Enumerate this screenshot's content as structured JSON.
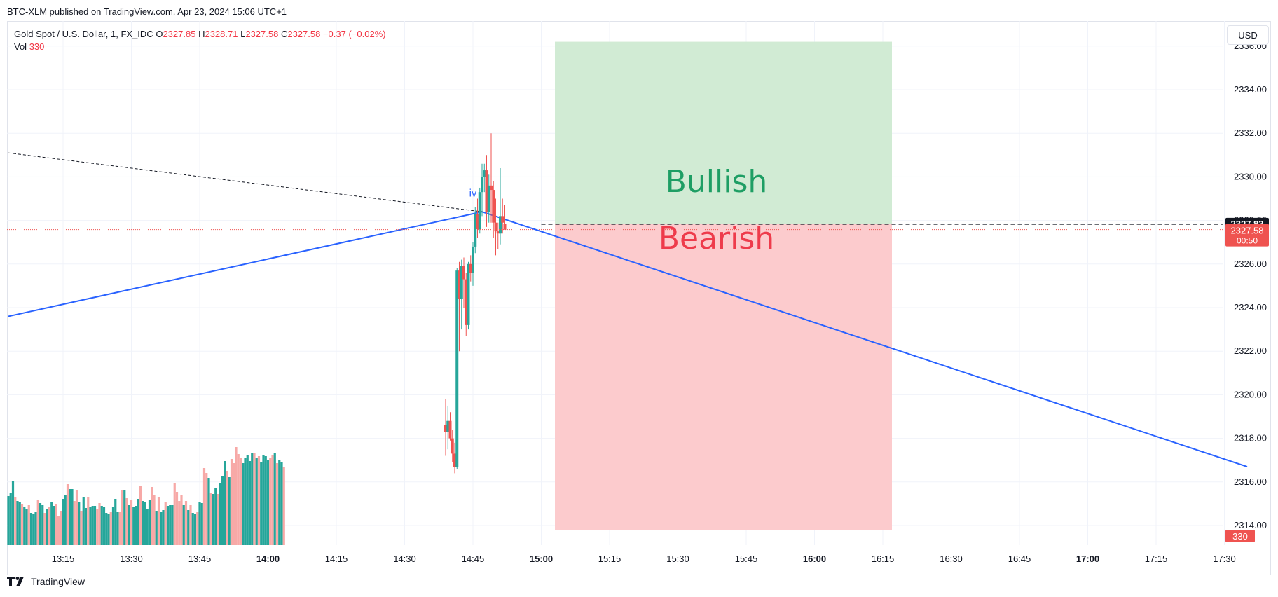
{
  "header": {
    "published": "BTC-XLM published on TradingView.com, Apr 23, 2024 15:06 UTC+1"
  },
  "legend": {
    "symbol": "Gold Spot / U.S. Dollar, 1, FX_IDC",
    "open_label": "O",
    "open": "2327.85",
    "high_label": "H",
    "high": "2328.71",
    "low_label": "L",
    "low": "2327.58",
    "close_label": "C",
    "close": "2327.58",
    "change": "−0.37 (−0.02%)",
    "vol_label": "Vol",
    "vol": "330"
  },
  "currency_button": "USD",
  "footer": {
    "brand": "TradingView"
  },
  "colors": {
    "up": "#26a69a",
    "down": "#ef5350",
    "vol_up": "#26a69a",
    "vol_down": "#f7a9a7",
    "trendline": "#2962ff",
    "bull_zone": "#d1ebd4",
    "bear_zone": "#fccbcd",
    "bull_text": "#1e9e64",
    "bear_text": "#ee3b4b"
  },
  "chart_data": {
    "type": "candlestick",
    "symbol": "Gold Spot / U.S. Dollar",
    "interval": "1",
    "y_axis_ticks": [
      "2314.00",
      "2316.00",
      "2318.00",
      "2320.00",
      "2322.00",
      "2324.00",
      "2326.00",
      "2328.00",
      "2330.00",
      "2332.00",
      "2334.00",
      "2336.00"
    ],
    "x_axis_ticks": [
      {
        "label": "13:15",
        "bold": false
      },
      {
        "label": "13:30",
        "bold": false
      },
      {
        "label": "13:45",
        "bold": false
      },
      {
        "label": "14:00",
        "bold": true
      },
      {
        "label": "14:15",
        "bold": false
      },
      {
        "label": "14:30",
        "bold": false
      },
      {
        "label": "14:45",
        "bold": false
      },
      {
        "label": "15:00",
        "bold": true
      },
      {
        "label": "15:15",
        "bold": false
      },
      {
        "label": "15:30",
        "bold": false
      },
      {
        "label": "15:45",
        "bold": false
      },
      {
        "label": "16:00",
        "bold": true
      },
      {
        "label": "16:15",
        "bold": false
      },
      {
        "label": "16:30",
        "bold": false
      },
      {
        "label": "16:45",
        "bold": false
      },
      {
        "label": "17:00",
        "bold": true
      },
      {
        "label": "17:15",
        "bold": false
      },
      {
        "label": "17:30",
        "bold": false
      }
    ],
    "ylim": [
      2313.5,
      2336.2
    ],
    "time_range_min": [
      "13:03",
      "17:35"
    ],
    "price_labels": [
      {
        "value": 2327.83,
        "text": "2327.83",
        "style": "black"
      },
      {
        "value": 2327.58,
        "text": "2327.58",
        "sub": "00:50",
        "style": "red"
      }
    ],
    "volume_label": "330",
    "annotations": {
      "wave_label": "iv",
      "bullish_text": "Bullish",
      "bearish_text": "Bearish"
    },
    "zones": {
      "start_time": "15:03",
      "end_time": "16:17",
      "entry": 2327.83,
      "bull_top": 2336.2,
      "bear_bottom": 2313.8
    },
    "trendlines": [
      {
        "style": "solid",
        "points": [
          [
            "13:03",
            2323.6
          ],
          [
            "14:47",
            2328.4
          ],
          [
            "17:35",
            2316.7
          ]
        ]
      },
      {
        "style": "dashed",
        "points": [
          [
            "13:03",
            2331.1
          ],
          [
            "14:47",
            2328.4
          ]
        ]
      }
    ],
    "candles": {
      "start_time": "14:39",
      "ohlc": [
        [
          2318.6,
          2319.8,
          2317.2,
          2318.3
        ],
        [
          2318.3,
          2319.5,
          2317.5,
          2318.8
        ],
        [
          2318.8,
          2319.2,
          2317.9,
          2318.0
        ],
        [
          2318.0,
          2318.4,
          2316.9,
          2317.3
        ],
        [
          2317.3,
          2317.8,
          2316.4,
          2316.7
        ],
        [
          2316.7,
          2325.8,
          2316.6,
          2325.7
        ],
        [
          2325.7,
          2326.1,
          2322.0,
          2324.4
        ],
        [
          2324.4,
          2326.2,
          2323.0,
          2325.9
        ],
        [
          2325.9,
          2326.3,
          2324.0,
          2325.3
        ],
        [
          2325.3,
          2325.6,
          2322.7,
          2323.2
        ],
        [
          2323.2,
          2326.1,
          2323.0,
          2326.0
        ],
        [
          2326.0,
          2326.4,
          2325.2,
          2325.6
        ],
        [
          2325.6,
          2327.0,
          2325.0,
          2326.8
        ],
        [
          2326.8,
          2328.6,
          2326.5,
          2328.3
        ],
        [
          2328.3,
          2329.0,
          2327.2,
          2327.6
        ],
        [
          2327.6,
          2329.5,
          2327.4,
          2329.3
        ],
        [
          2329.3,
          2330.6,
          2328.2,
          2330.0
        ],
        [
          2330.0,
          2330.6,
          2329.3,
          2330.3
        ],
        [
          2330.3,
          2331.0,
          2327.7,
          2328.4
        ],
        [
          2328.4,
          2330.1,
          2327.9,
          2329.6
        ],
        [
          2329.6,
          2332.0,
          2327.9,
          2329.4
        ],
        [
          2329.4,
          2329.8,
          2327.2,
          2327.9
        ],
        [
          2327.9,
          2329.0,
          2326.4,
          2327.5
        ],
        [
          2327.5,
          2327.9,
          2326.7,
          2327.4
        ],
        [
          2327.4,
          2330.4,
          2326.9,
          2328.2
        ],
        [
          2328.2,
          2329.0,
          2327.4,
          2327.9
        ],
        [
          2327.85,
          2328.71,
          2327.58,
          2327.58
        ]
      ]
    },
    "volume": {
      "start_time": "13:03",
      "up": [
        1,
        1,
        1,
        0,
        1,
        1,
        0,
        1,
        1,
        0,
        1,
        1,
        1,
        0,
        1,
        1,
        0,
        1,
        0,
        1,
        1,
        0,
        0,
        0,
        1,
        1,
        0,
        1,
        1,
        0,
        0,
        1,
        0,
        1,
        1,
        0,
        1,
        1,
        1,
        0,
        0,
        1,
        1,
        1,
        1,
        0,
        1,
        1,
        1,
        0,
        0,
        1,
        0,
        1,
        0,
        1,
        1,
        1,
        0,
        1,
        1,
        1,
        1,
        0,
        0,
        1,
        0,
        1,
        1,
        0,
        1,
        1,
        1,
        0,
        0,
        0,
        0,
        1,
        0,
        1,
        0,
        1,
        1,
        0,
        1,
        1,
        0,
        0,
        1,
        0,
        1,
        1,
        0,
        1,
        1,
        1,
        0,
        1,
        0,
        0,
        0,
        0,
        0,
        1,
        1,
        1,
        1,
        1,
        0,
        1,
        0,
        1,
        1,
        1,
        1,
        0,
        0,
        1,
        0,
        1,
        1,
        0
      ],
      "values": [
        70,
        75,
        92,
        68,
        63,
        62,
        59,
        54,
        52,
        58,
        46,
        44,
        48,
        64,
        60,
        58,
        46,
        51,
        55,
        62,
        56,
        59,
        42,
        49,
        66,
        71,
        87,
        80,
        80,
        63,
        78,
        62,
        49,
        68,
        53,
        68,
        55,
        56,
        56,
        52,
        60,
        56,
        54,
        46,
        44,
        48,
        54,
        66,
        47,
        48,
        78,
        79,
        67,
        57,
        65,
        55,
        56,
        66,
        84,
        63,
        62,
        52,
        64,
        83,
        71,
        49,
        69,
        48,
        50,
        61,
        56,
        58,
        58,
        89,
        76,
        63,
        72,
        58,
        63,
        50,
        58,
        46,
        45,
        48,
        61,
        60,
        110,
        103,
        96,
        75,
        73,
        81,
        73,
        88,
        99,
        120,
        106,
        97,
        123,
        117,
        140,
        130,
        125,
        117,
        125,
        129,
        120,
        131,
        131,
        124,
        127,
        118,
        128,
        127,
        121,
        124,
        128,
        131,
        117,
        122,
        118,
        112
      ]
    },
    "grid": true,
    "legend_position": "top-left"
  }
}
